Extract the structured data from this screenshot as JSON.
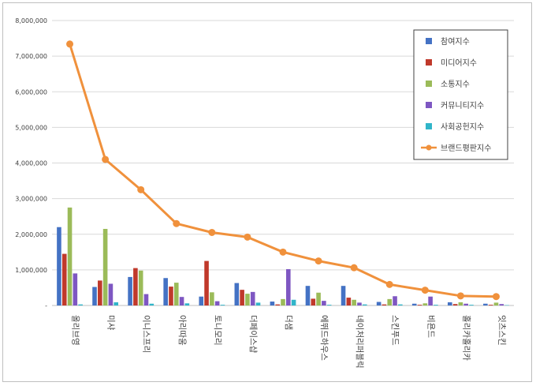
{
  "chart_data": {
    "type": "bar",
    "title": "",
    "xlabel": "",
    "ylabel": "",
    "ylim": [
      0,
      8000000
    ],
    "yticks": [
      0,
      1000000,
      2000000,
      3000000,
      4000000,
      5000000,
      6000000,
      7000000,
      8000000
    ],
    "ytick_labels": [
      "-",
      "1,000,000",
      "2,000,000",
      "3,000,000",
      "4,000,000",
      "5,000,000",
      "6,000,000",
      "7,000,000",
      "8,000,000"
    ],
    "grid": true,
    "legend_position": "top-right",
    "categories": [
      "올리브영",
      "미샤",
      "이니스프리",
      "아리따움",
      "토니모리",
      "더페이스샵",
      "더샘",
      "에뛰드하우스",
      "네이처리퍼블릭",
      "스킨푸드",
      "비욘드",
      "홀리카홀리카",
      "잇츠스킨"
    ],
    "series": [
      {
        "name": "참여지수",
        "kind": "bar",
        "color": "#4472c4",
        "values": [
          2200000,
          520000,
          800000,
          770000,
          250000,
          630000,
          110000,
          550000,
          550000,
          100000,
          50000,
          90000,
          50000
        ]
      },
      {
        "name": "미디어지수",
        "kind": "bar",
        "color": "#c0392b",
        "values": [
          1450000,
          700000,
          1050000,
          530000,
          1250000,
          440000,
          30000,
          190000,
          220000,
          30000,
          20000,
          40000,
          20000
        ]
      },
      {
        "name": "소통지수",
        "kind": "bar",
        "color": "#9bbb59",
        "values": [
          2750000,
          2150000,
          980000,
          640000,
          370000,
          330000,
          180000,
          360000,
          160000,
          180000,
          60000,
          90000,
          80000
        ]
      },
      {
        "name": "커뮤니티지수",
        "kind": "bar",
        "color": "#7e57c2",
        "values": [
          900000,
          610000,
          320000,
          240000,
          120000,
          380000,
          1020000,
          130000,
          80000,
          260000,
          250000,
          50000,
          40000
        ]
      },
      {
        "name": "사회공헌지수",
        "kind": "bar",
        "color": "#31b5c9",
        "values": [
          30000,
          90000,
          50000,
          60000,
          20000,
          80000,
          160000,
          20000,
          30000,
          30000,
          20000,
          20000,
          10000
        ]
      },
      {
        "name": "브랜드평판지수",
        "kind": "line",
        "color": "#f0913c",
        "values": [
          7340000,
          4100000,
          3250000,
          2300000,
          2050000,
          1920000,
          1500000,
          1250000,
          1060000,
          590000,
          430000,
          270000,
          250000
        ]
      }
    ]
  }
}
